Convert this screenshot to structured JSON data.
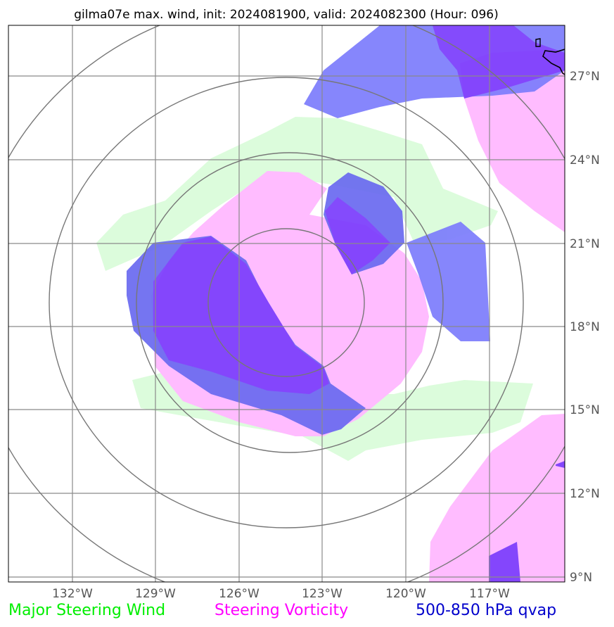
{
  "title": "gilma07e max. wind, init: 2024081900, valid: 2024082300 (Hour: 096)",
  "lon_ticks": [
    "132°W",
    "129°W",
    "126°W",
    "123°W",
    "120°W",
    "117°W"
  ],
  "lat_ticks": [
    "27°N",
    "24°N",
    "21°N",
    "18°N",
    "15°N",
    "12°N",
    "9°N"
  ],
  "legend": {
    "wind": "Major Steering Wind",
    "vort": "Steering Vorticity",
    "qvap": "500-850 hPa qvap"
  },
  "colors": {
    "wind": "#00ee00",
    "wind_fill": "#dcfcdc",
    "vort": "#ff00ff",
    "vort_fill": "#ffbcff",
    "qvap": "#0000cc",
    "qvap_fill": "#7c7cfc"
  }
}
